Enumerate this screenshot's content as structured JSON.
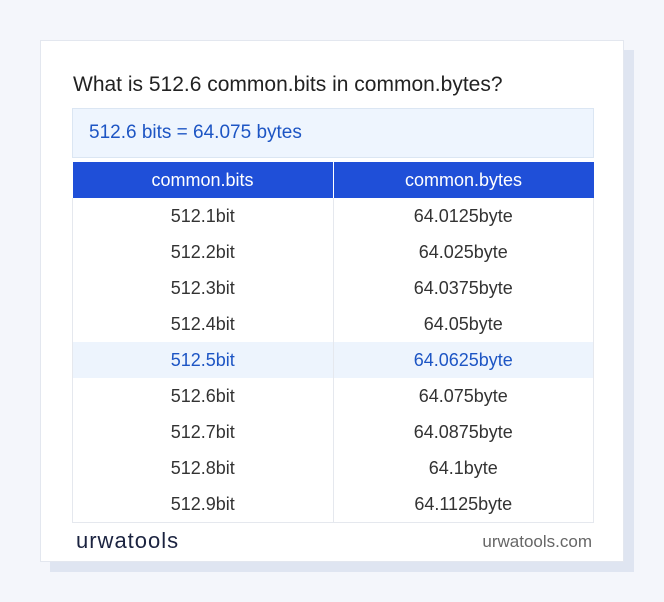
{
  "header": {
    "title": "What is 512.6 common.bits in common.bytes?"
  },
  "result": "512.6 bits = 64.075 bytes",
  "table": {
    "columns": [
      "common.bits",
      "common.bytes"
    ],
    "rows": [
      [
        "512.1bit",
        "64.0125byte"
      ],
      [
        "512.2bit",
        "64.025byte"
      ],
      [
        "512.3bit",
        "64.0375byte"
      ],
      [
        "512.4bit",
        "64.05byte"
      ],
      [
        "512.5bit",
        "64.0625byte"
      ],
      [
        "512.6bit",
        "64.075byte"
      ],
      [
        "512.7bit",
        "64.0875byte"
      ],
      [
        "512.8bit",
        "64.1byte"
      ],
      [
        "512.9bit",
        "64.1125byte"
      ]
    ]
  },
  "footer": {
    "logo": "urwatools",
    "site": "urwatools.com"
  }
}
